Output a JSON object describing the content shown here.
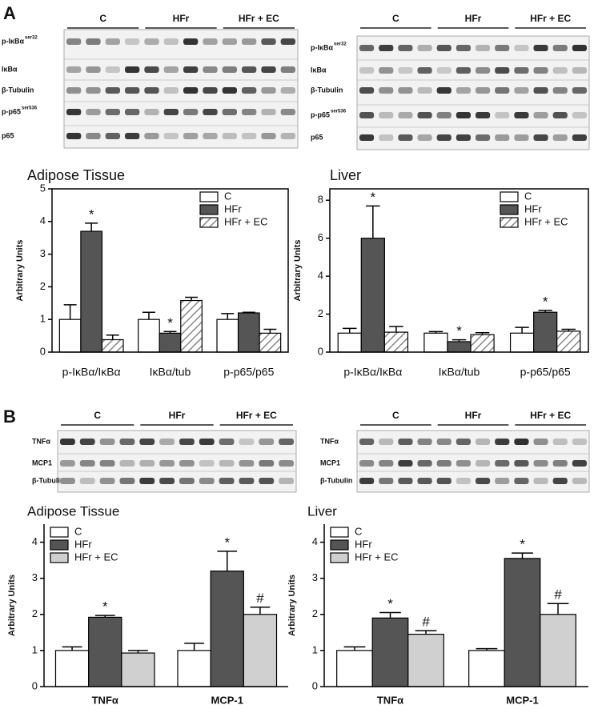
{
  "panels": [
    "A",
    "B"
  ],
  "blots": [
    {
      "groups": [
        "C",
        "HFr",
        "HFr + EC"
      ],
      "rows": [
        {
          "label": "p-IκBα",
          "sup": "ser32"
        },
        {
          "label": "IκBα"
        },
        {
          "label": "β-Tubulin"
        },
        {
          "label": "p-p65",
          "sup": "ser536"
        },
        {
          "label": "p65"
        }
      ]
    },
    {
      "groups": [
        "C",
        "HFr",
        "HFr + EC"
      ],
      "rows": [
        {
          "label": "p-IκBα",
          "sup": "ser32"
        },
        {
          "label": "IκBα"
        },
        {
          "label": "β-Tubulin"
        },
        {
          "label": "p-p65",
          "sup": "ser536"
        },
        {
          "label": "p65"
        }
      ]
    },
    {
      "groups": [
        "C",
        "HFr",
        "HFr + EC"
      ],
      "rows": [
        {
          "label": "TNFα"
        },
        {
          "label": "MCP1"
        },
        {
          "label": "β-Tubulin"
        }
      ]
    },
    {
      "groups": [
        "C",
        "HFr",
        "HFr + EC"
      ],
      "rows": [
        {
          "label": "TNFα"
        },
        {
          "label": "MCP1"
        },
        {
          "label": "β-Tubulin"
        }
      ]
    }
  ],
  "chart_data": [
    {
      "type": "bar",
      "title": "Adipose Tissue",
      "y_label": "Arbitrary Units",
      "categories": [
        "p-IκBα/IκBα",
        "IκBα/tub",
        "p-p65/p65"
      ],
      "series": [
        {
          "name": "C",
          "color": "#ffffff",
          "values": [
            1,
            1,
            1
          ],
          "errors": [
            0.45,
            0.22,
            0.18
          ],
          "markers": [
            null,
            null,
            null
          ]
        },
        {
          "name": "HFr",
          "color": "#555555",
          "values": [
            3.7,
            0.58,
            1.2
          ],
          "errors": [
            0.25,
            0.05,
            0.02
          ],
          "markers": [
            "*",
            "*",
            null
          ]
        },
        {
          "name": "HFr + EC",
          "color": "#ffffff",
          "hatch": true,
          "values": [
            0.38,
            1.58,
            0.58
          ],
          "errors": [
            0.14,
            0.1,
            0.12
          ],
          "markers": [
            null,
            null,
            null
          ]
        }
      ],
      "ylim": [
        0,
        5
      ],
      "yticks": [
        0,
        1,
        2,
        3,
        4,
        5
      ],
      "legend": "upper right"
    },
    {
      "type": "bar",
      "title": "Liver",
      "y_label": "Arbitrary Units",
      "categories": [
        "p-IκBα/IκBα",
        "IκBα/tub",
        "p-p65/p65"
      ],
      "series": [
        {
          "name": "C",
          "color": "#ffffff",
          "values": [
            1,
            1,
            1
          ],
          "errors": [
            0.25,
            0.08,
            0.3
          ],
          "markers": [
            null,
            null,
            null
          ]
        },
        {
          "name": "HFr",
          "color": "#555555",
          "values": [
            6,
            0.55,
            2.1
          ],
          "errors": [
            1.7,
            0.1,
            0.1
          ],
          "markers": [
            "*",
            "*",
            "*"
          ]
        },
        {
          "name": "HFr + EC",
          "color": "#ffffff",
          "hatch": true,
          "values": [
            1.05,
            0.92,
            1.1
          ],
          "errors": [
            0.3,
            0.1,
            0.1
          ],
          "markers": [
            null,
            null,
            null
          ]
        }
      ],
      "ylim": [
        0,
        8.6
      ],
      "yticks": [
        0,
        2,
        4,
        6,
        8
      ],
      "legend": "upper right"
    },
    {
      "type": "bar",
      "title": "Adipose Tissue",
      "y_label": "Arbitrary Units",
      "categories": [
        "TNFα",
        "MCP-1"
      ],
      "series": [
        {
          "name": "C",
          "color": "#ffffff",
          "values": [
            1,
            1
          ],
          "errors": [
            0.1,
            0.2
          ],
          "markers": [
            null,
            null
          ]
        },
        {
          "name": "HFr",
          "color": "#555555",
          "values": [
            1.92,
            3.2
          ],
          "errors": [
            0.05,
            0.55
          ],
          "markers": [
            "*",
            "*"
          ]
        },
        {
          "name": "HFr + EC",
          "color": "#d0d0d0",
          "values": [
            0.93,
            2
          ],
          "errors": [
            0.07,
            0.2
          ],
          "markers": [
            null,
            "#"
          ]
        }
      ],
      "ylim": [
        0,
        4.5
      ],
      "yticks": [
        0,
        1,
        2,
        3,
        4
      ],
      "legend": "upper left"
    },
    {
      "type": "bar",
      "title": "Liver",
      "y_label": "Arbitrary Units",
      "categories": [
        "TNFα",
        "MCP-1"
      ],
      "series": [
        {
          "name": "C",
          "color": "#ffffff",
          "values": [
            1,
            1
          ],
          "errors": [
            0.1,
            0.05
          ],
          "markers": [
            null,
            null
          ]
        },
        {
          "name": "HFr",
          "color": "#555555",
          "values": [
            1.9,
            3.55
          ],
          "errors": [
            0.15,
            0.15
          ],
          "markers": [
            "*",
            "*"
          ]
        },
        {
          "name": "HFr + EC",
          "color": "#d0d0d0",
          "values": [
            1.45,
            2
          ],
          "errors": [
            0.1,
            0.3
          ],
          "markers": [
            "#",
            "#"
          ]
        }
      ],
      "ylim": [
        0,
        4.5
      ],
      "yticks": [
        0,
        1,
        2,
        3,
        4
      ],
      "legend": "upper left"
    }
  ]
}
